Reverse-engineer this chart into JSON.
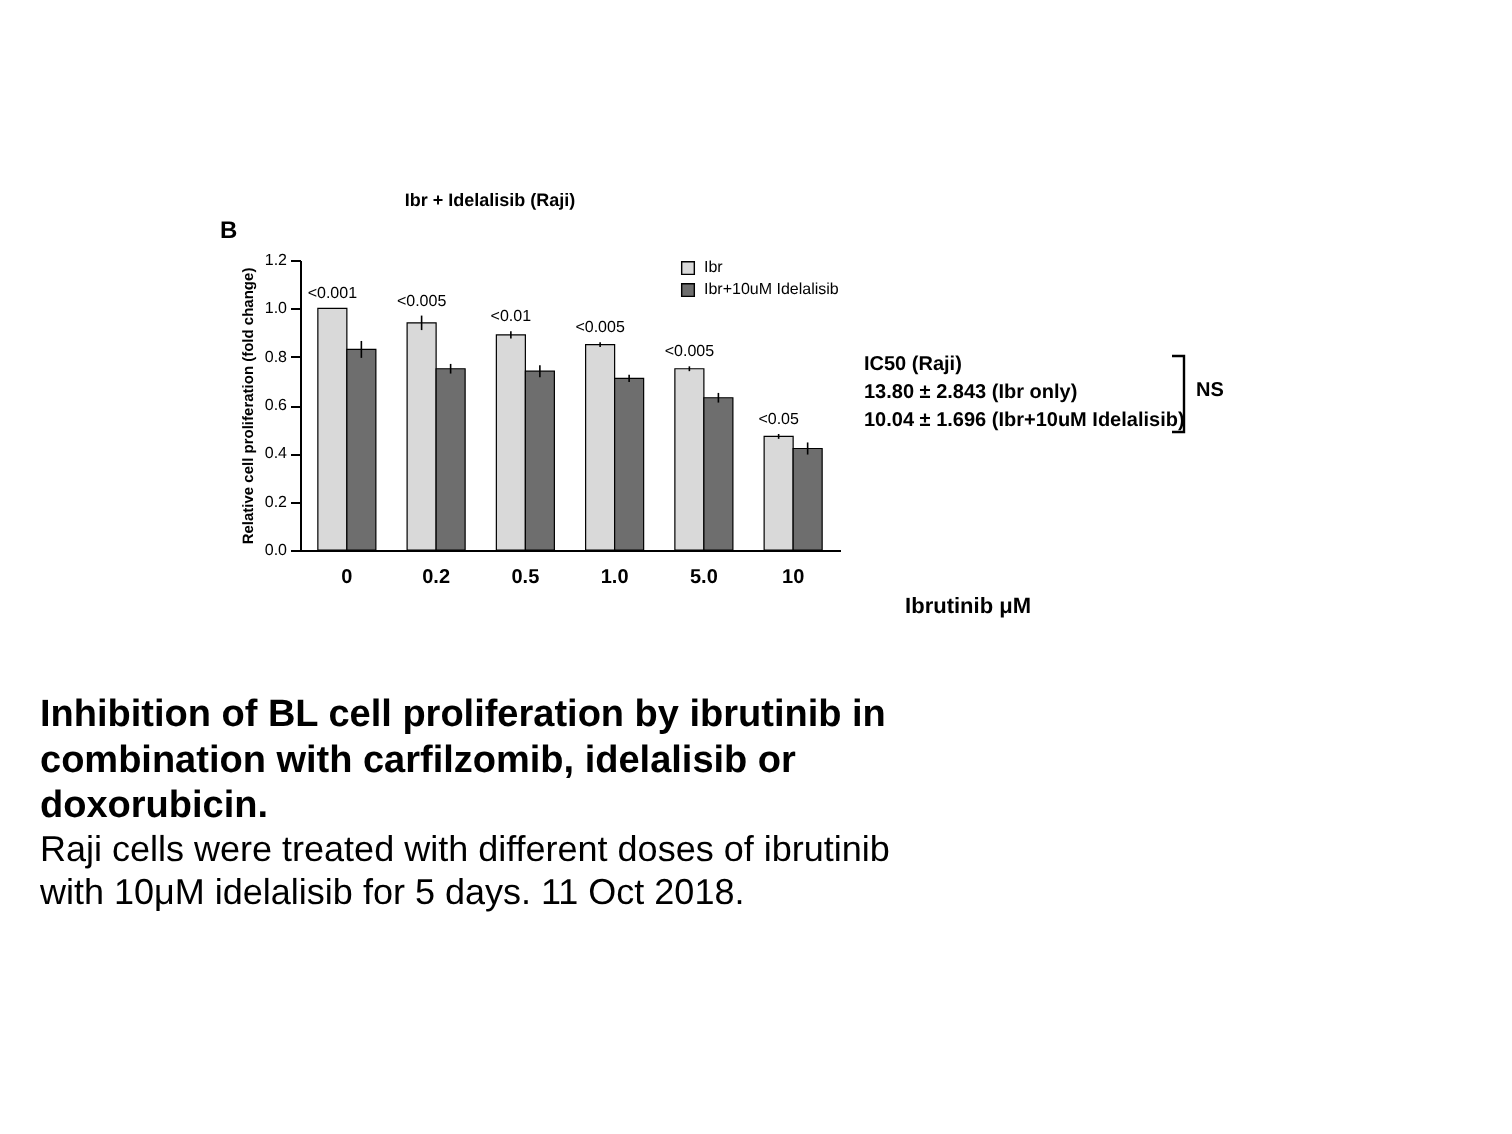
{
  "chart_data": {
    "type": "bar",
    "title": "Ibr + Idelalisib (Raji)",
    "xlabel": "Ibrutinib μM",
    "ylabel": "Relative cell proliferation (fold change)",
    "categories": [
      "0",
      "0.2",
      "0.5",
      "1.0",
      "5.0",
      "10"
    ],
    "series": [
      {
        "name": "Ibr",
        "color": "#d9d9d9",
        "values": [
          1.0,
          0.94,
          0.89,
          0.85,
          0.75,
          0.47
        ],
        "errors": [
          0,
          0.03,
          0.015,
          0.01,
          0.01,
          0.01
        ],
        "value_labels": [
          "<0.001",
          "<0.005",
          "<0.01",
          "<0.005",
          "<0.005",
          "<0.05"
        ]
      },
      {
        "name": "Ibr+10uM Idelalisib",
        "color": "#6e6e6e",
        "values": [
          0.83,
          0.75,
          0.74,
          0.71,
          0.63,
          0.42
        ],
        "errors": [
          0.035,
          0.02,
          0.025,
          0.015,
          0.02,
          0.025
        ]
      }
    ],
    "ylim": [
      0,
      1.2
    ],
    "yticks": [
      {
        "value": 0,
        "label": "0.0"
      },
      0.2,
      0.4,
      0.6,
      0.8,
      {
        "value": 1,
        "label": "1.0"
      },
      1.2
    ],
    "grid": false,
    "legend": "top right",
    "annotations": [
      "B",
      "IC50 (Raji)",
      "13.80 ± 2.843 (Ibr only)",
      "10.04 ± 1.696 (Ibr+10uM Idelalisib)",
      "NS",
      "Inhibition of BL cell proliferation by ibrutinib in combination with carfilzomib, idelalisib or doxorubicin.",
      "Raji cells were treated with different doses of ibrutinib with 10μM idelalisib for 5 days. 11 Oct 2018."
    ]
  }
}
